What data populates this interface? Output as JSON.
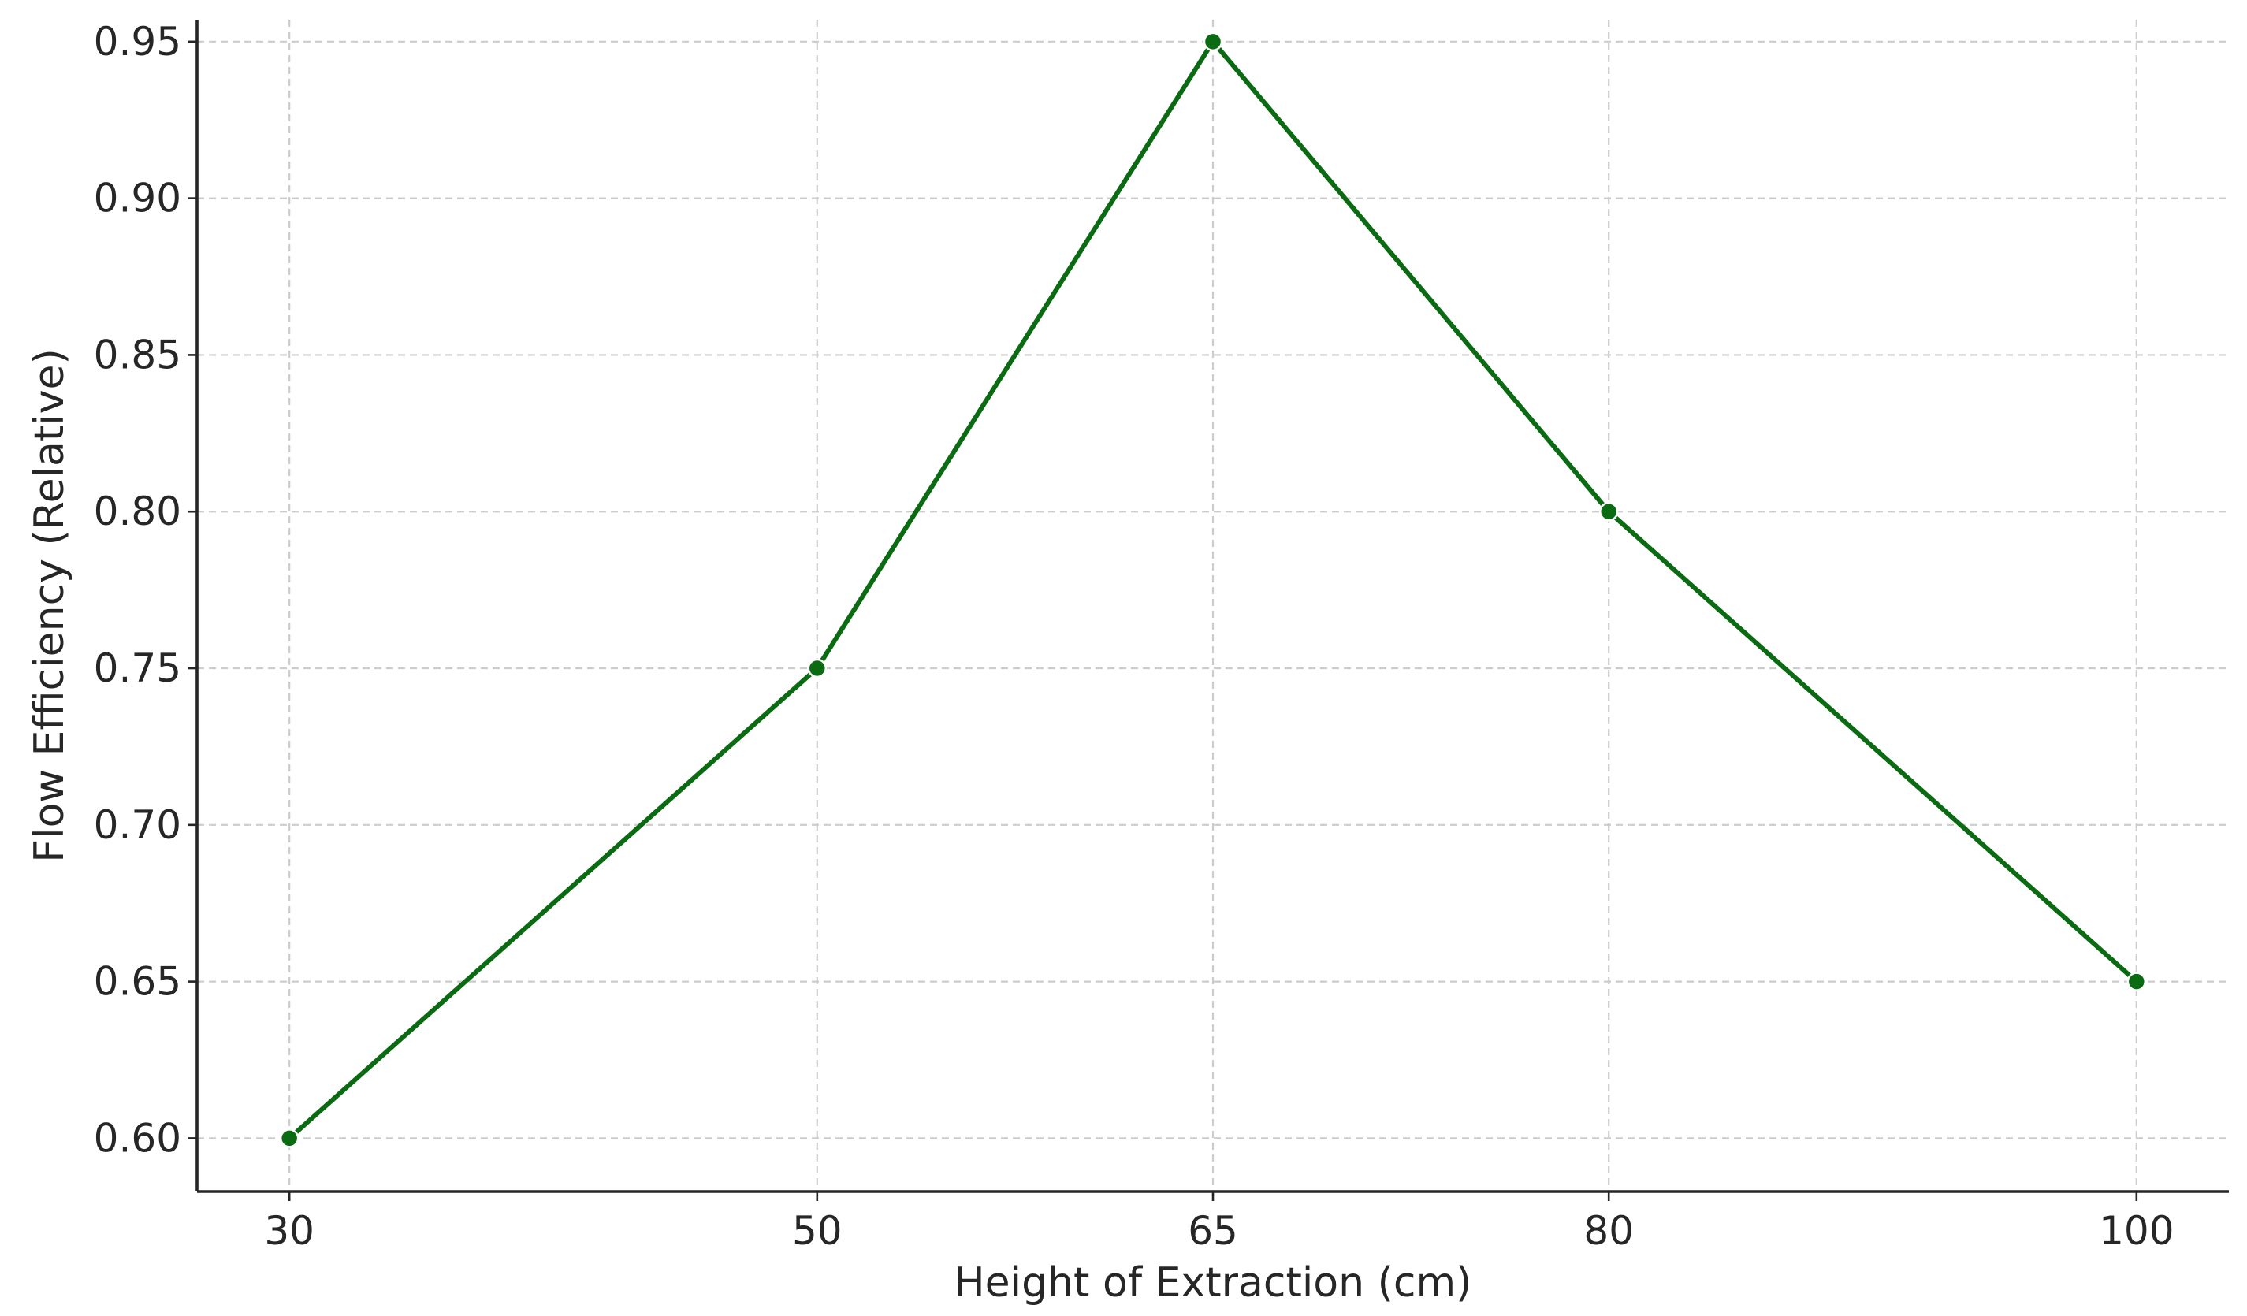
{
  "chart_data": {
    "type": "line",
    "title": "",
    "xlabel": "Height of Extraction (cm)",
    "ylabel": "Flow Efficiency (Relative)",
    "x": [
      30,
      50,
      65,
      80,
      100
    ],
    "x_ticks": [
      "30",
      "50",
      "65",
      "80",
      "100"
    ],
    "y_ticks": [
      "0.60",
      "0.65",
      "0.70",
      "0.75",
      "0.80",
      "0.85",
      "0.90",
      "0.95"
    ],
    "y_tick_values": [
      0.6,
      0.65,
      0.7,
      0.75,
      0.8,
      0.85,
      0.9,
      0.95
    ],
    "xlim": [
      26.5,
      103.5
    ],
    "ylim": [
      0.583,
      0.957
    ],
    "grid": true,
    "legend": "none",
    "series": [
      {
        "values": [
          0.6,
          0.75,
          0.95,
          0.8,
          0.65
        ],
        "color": "#0b6b13",
        "marker": "circle"
      }
    ]
  }
}
